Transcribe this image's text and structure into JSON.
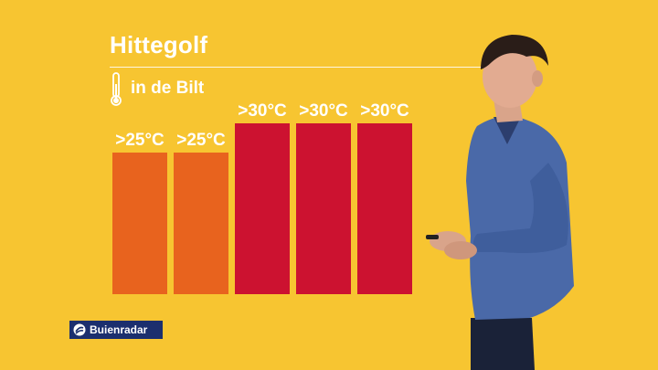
{
  "title": "Hittegolf",
  "subtitle": "in de Bilt",
  "brand": {
    "name": "Buienradar",
    "color": "#1c2f6e"
  },
  "icons": {
    "thermometer": "thermometer-icon",
    "logo": "buienradar-logo-icon"
  },
  "colors": {
    "background": "#f7c531",
    "warm": "#e8631e",
    "hot": "#cc1230"
  },
  "chart_data": {
    "type": "bar",
    "title": "Hittegolf",
    "subtitle": "in de Bilt",
    "categories": [
      "",
      "",
      "",
      "",
      ""
    ],
    "values": [
      25,
      25,
      30,
      30,
      30
    ],
    "labels": [
      ">25°C",
      ">25°C",
      ">30°C",
      ">30°C",
      ">30°C"
    ],
    "colors": [
      "#e8631e",
      "#e8631e",
      "#cc1230",
      "#cc1230",
      "#cc1230"
    ],
    "ylim": [
      0,
      30
    ],
    "grid": false,
    "legend": "none"
  }
}
